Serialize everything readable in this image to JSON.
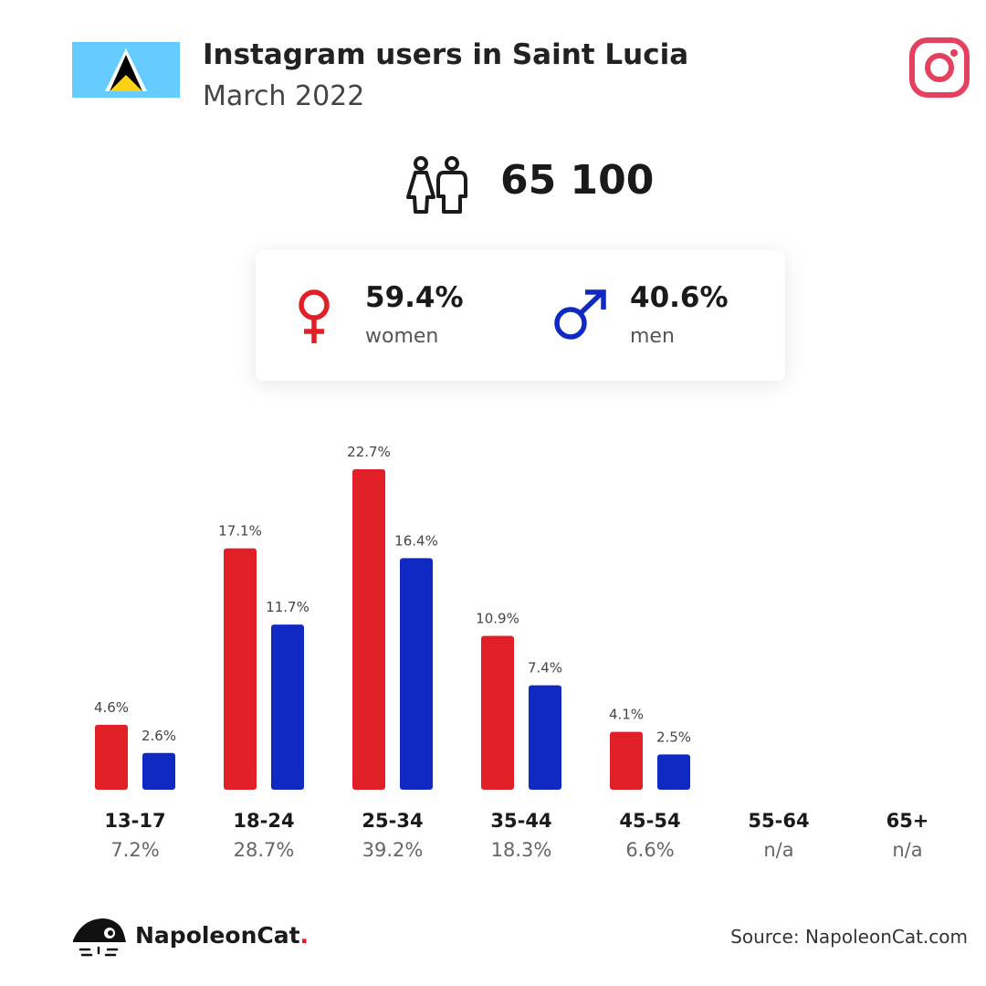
{
  "header": {
    "title": "Instagram users in Saint Lucia",
    "subtitle": "March 2022"
  },
  "total_users": "65 100",
  "gender": {
    "women": {
      "value": "59.4%",
      "label": "women"
    },
    "men": {
      "value": "40.6%",
      "label": "men"
    }
  },
  "colors": {
    "women": "#e01f26",
    "men": "#1029c2",
    "instagram": "#e4405f",
    "flag_blue": "#66ccff",
    "flag_gold": "#fcd116"
  },
  "icons": {
    "flag": "saint-lucia-flag-icon",
    "brand": "instagram-icon",
    "people": "people-icon",
    "female": "female-symbol-icon",
    "male": "male-symbol-icon",
    "logo": "napoleoncat-logo-icon"
  },
  "chart_data": {
    "type": "bar",
    "categories": [
      "13-17",
      "18-24",
      "25-34",
      "35-44",
      "45-54",
      "55-64",
      "65+"
    ],
    "category_totals": [
      "7.2%",
      "28.7%",
      "39.2%",
      "18.3%",
      "6.6%",
      "n/a",
      "n/a"
    ],
    "series": [
      {
        "name": "women",
        "values": [
          4.6,
          17.1,
          22.7,
          10.9,
          4.1,
          null,
          null
        ],
        "labels": [
          "4.6%",
          "17.1%",
          "22.7%",
          "10.9%",
          "4.1%",
          "",
          ""
        ]
      },
      {
        "name": "men",
        "values": [
          2.6,
          11.7,
          16.4,
          7.4,
          2.5,
          null,
          null
        ],
        "labels": [
          "2.6%",
          "11.7%",
          "16.4%",
          "7.4%",
          "2.5%",
          "",
          ""
        ]
      }
    ],
    "ylim": [
      0,
      22.7
    ]
  },
  "footer": {
    "brand_name": "NapoleonCat",
    "brand_dot": ".",
    "source": "Source: NapoleonCat.com"
  }
}
